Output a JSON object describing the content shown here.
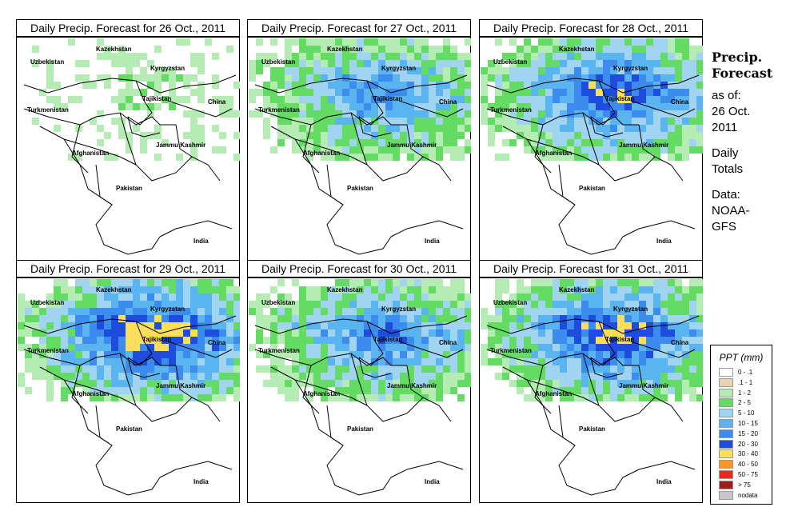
{
  "panels": [
    {
      "title": "Daily Precip. Forecast for  26 Oct., 2011",
      "intensity": 0.15
    },
    {
      "title": "Daily Precip. Forecast for  27 Oct., 2011",
      "intensity": 0.55
    },
    {
      "title": "Daily Precip. Forecast for  28 Oct., 2011",
      "intensity": 0.7
    },
    {
      "title": "Daily Precip. Forecast for  29 Oct., 2011",
      "intensity": 0.8
    },
    {
      "title": "Daily Precip. Forecast for  30 Oct., 2011",
      "intensity": 0.6
    },
    {
      "title": "Daily Precip. Forecast for  31 Oct., 2011",
      "intensity": 0.75
    }
  ],
  "map_labels": {
    "kazakhstan": "Kazekhstan",
    "uzbekistan": "Uzbekistan",
    "kyrgyzstan": "Kyrgyzstan",
    "tajikistan": "Tajikistan",
    "china": "China",
    "turkmenistan": "Turkmenistan",
    "afghanistan": "Afghanistan",
    "jammu_kashmir": "Jammu Kashmir",
    "pakistan": "Pakistan",
    "india": "India"
  },
  "side": {
    "heading_line1": "Precip.",
    "heading_line2": "Forecast",
    "asof_line1": "as of:",
    "asof_line2": "26 Oct.",
    "asof_line3": "2011",
    "daily_line1": "Daily",
    "daily_line2": "Totals",
    "data_line1": "Data:",
    "data_line2": "NOAA-",
    "data_line3": "GFS"
  },
  "legend": {
    "title": "PPT (mm)",
    "items": [
      {
        "label": "0 - .1",
        "color": "#ffffff"
      },
      {
        "label": ".1 - 1",
        "color": "#e8d4b4"
      },
      {
        "label": "1 - 2",
        "color": "#b4ecb4"
      },
      {
        "label": "2 - 5",
        "color": "#64dc64"
      },
      {
        "label": "5 - 10",
        "color": "#a0d4f0"
      },
      {
        "label": "10 - 15",
        "color": "#5ab4f0"
      },
      {
        "label": "15 - 20",
        "color": "#3c8cf0"
      },
      {
        "label": "20 - 30",
        "color": "#1e4cdc"
      },
      {
        "label": "30 - 40",
        "color": "#fae05a"
      },
      {
        "label": "40 - 50",
        "color": "#fa9628"
      },
      {
        "label": "50 - 75",
        "color": "#e6281e"
      },
      {
        "label": "> 75",
        "color": "#a01e1e"
      },
      {
        "label": "nodata",
        "color": "#c8c8c8"
      }
    ]
  }
}
